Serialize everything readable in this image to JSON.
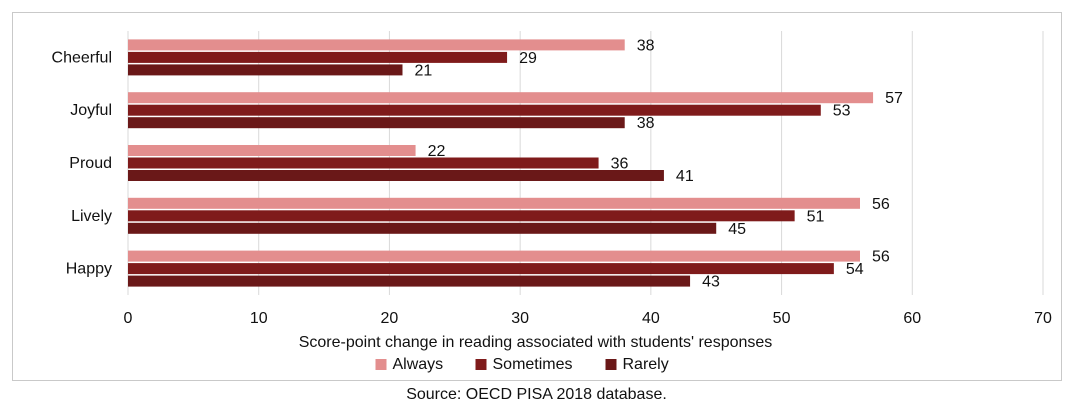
{
  "chart_data": {
    "type": "bar",
    "orientation": "horizontal",
    "categories": [
      "Cheerful",
      "Joyful",
      "Proud",
      "Lively",
      "Happy"
    ],
    "series": [
      {
        "name": "Always",
        "color": "#e38e8e",
        "values": [
          38,
          57,
          22,
          56,
          56
        ]
      },
      {
        "name": "Sometimes",
        "color": "#7f1b1b",
        "values": [
          29,
          53,
          36,
          51,
          54
        ]
      },
      {
        "name": "Rarely",
        "color": "#6a1818",
        "values": [
          21,
          38,
          41,
          45,
          43
        ]
      }
    ],
    "xlabel": "Score-point change in reading associated with students' responses",
    "ylabel": "",
    "xlim": [
      0,
      70
    ],
    "xticks": [
      0,
      10,
      20,
      30,
      40,
      50,
      60,
      70
    ],
    "grid": true,
    "legend": "bottom"
  },
  "source_note": "Source: OECD PISA 2018 database."
}
